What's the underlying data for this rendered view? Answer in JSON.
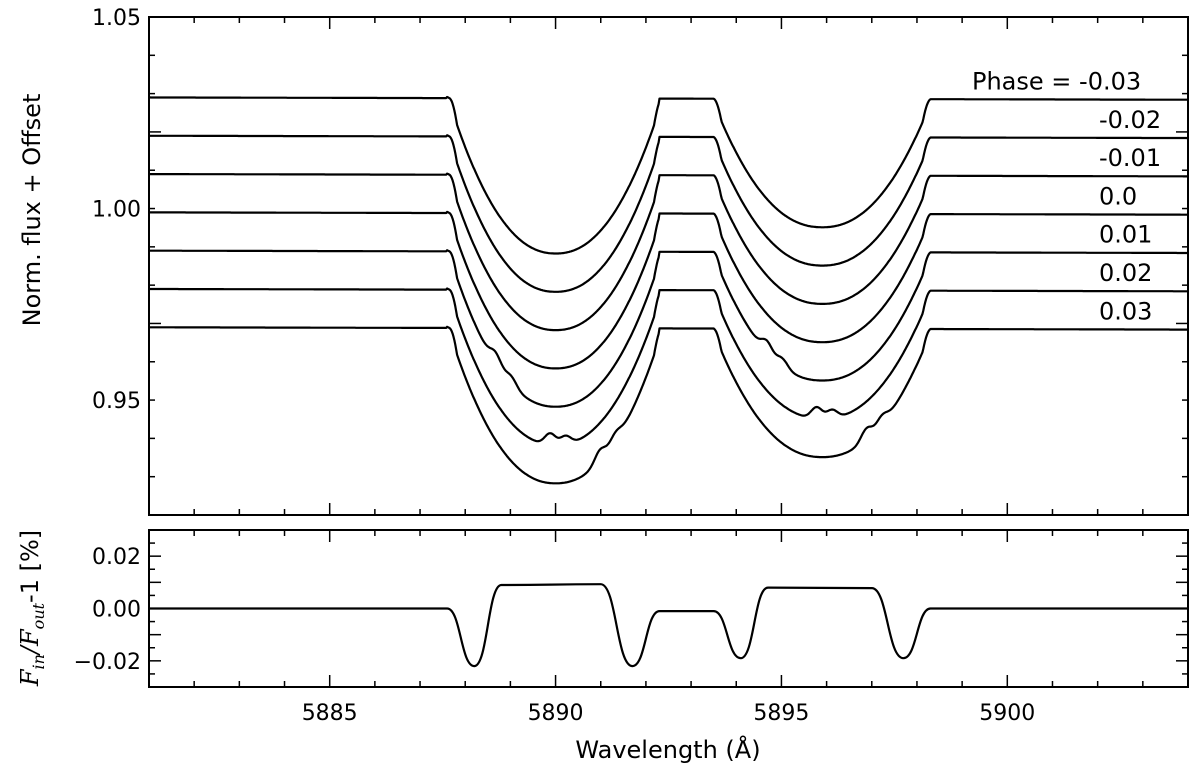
{
  "chart_data": [
    {
      "type": "line",
      "title": "",
      "xlabel": "",
      "ylabel": "Norm. flux + Offset",
      "xlim": [
        5881,
        5904
      ],
      "ylim": [
        0.92,
        1.05
      ],
      "yticks": [
        "1.05",
        "1.00",
        "0.95"
      ],
      "legend_prefix": "Phase = ",
      "series": [
        {
          "label": "-0.03",
          "offset": 1.029,
          "bump1": null,
          "bump2": null
        },
        {
          "label": "-0.02",
          "offset": 1.019,
          "bump1": null,
          "bump2": null
        },
        {
          "label": "-0.01",
          "offset": 1.009,
          "bump1": null,
          "bump2": null
        },
        {
          "label": "0.0",
          "offset": 0.999,
          "bump1": null,
          "bump2": null
        },
        {
          "label": "0.01",
          "offset": 0.989,
          "bump1": 5888.8,
          "bump2": 5894.8
        },
        {
          "label": "0.02",
          "offset": 0.979,
          "bump1": 5890.0,
          "bump2": 5895.9
        },
        {
          "label": "0.03",
          "offset": 0.969,
          "bump1": 5891.1,
          "bump2": 5897.0
        }
      ],
      "line_profile": {
        "d1_center": 5890.0,
        "d1_depth": 0.0395,
        "d1_wing_edges": [
          5887.6,
          5892.3
        ],
        "d2_center": 5895.9,
        "d2_depth": 0.0325,
        "d2_wing_edges": [
          5893.5,
          5898.3
        ]
      }
    },
    {
      "type": "line",
      "title": "",
      "xlabel": "Wavelength (Å)",
      "ylabel_parts": [
        "F",
        "in",
        "/",
        "F",
        "out",
        "-1 [%]"
      ],
      "xlim": [
        5881,
        5904
      ],
      "ylim": [
        -0.03,
        0.03
      ],
      "xticks": [
        "5885",
        "5890",
        "5895",
        "5900"
      ],
      "yticks": [
        "0.02",
        "0.00",
        "−0.02"
      ],
      "series": [
        {
          "x": [
            5881.0,
            5887.6,
            5888.2,
            5888.8,
            5891.0,
            5891.7,
            5892.3,
            5893.5,
            5894.1,
            5894.7,
            5897.0,
            5897.7,
            5898.3,
            5904.0
          ],
          "y": [
            0.0,
            0.0,
            -0.022,
            0.009,
            0.0093,
            -0.022,
            -0.001,
            -0.001,
            -0.019,
            0.008,
            0.0078,
            -0.019,
            0.0,
            0.0
          ]
        }
      ]
    }
  ]
}
